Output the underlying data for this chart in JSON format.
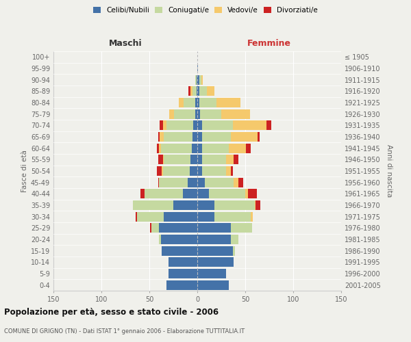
{
  "age_groups": [
    "0-4",
    "5-9",
    "10-14",
    "15-19",
    "20-24",
    "25-29",
    "30-34",
    "35-39",
    "40-44",
    "45-49",
    "50-54",
    "55-59",
    "60-64",
    "65-69",
    "70-74",
    "75-79",
    "80-84",
    "85-89",
    "90-94",
    "95-99",
    "100+"
  ],
  "birth_years": [
    "2001-2005",
    "1996-2000",
    "1991-1995",
    "1986-1990",
    "1981-1985",
    "1976-1980",
    "1971-1975",
    "1966-1970",
    "1961-1965",
    "1956-1960",
    "1951-1955",
    "1946-1950",
    "1941-1945",
    "1936-1940",
    "1931-1935",
    "1926-1930",
    "1921-1925",
    "1916-1920",
    "1911-1915",
    "1906-1910",
    "≤ 1905"
  ],
  "males": {
    "celibi": [
      32,
      30,
      30,
      37,
      38,
      40,
      35,
      25,
      15,
      10,
      8,
      7,
      6,
      5,
      4,
      2,
      2,
      1,
      1,
      0,
      0
    ],
    "coniugati": [
      0,
      0,
      0,
      0,
      2,
      8,
      28,
      42,
      40,
      30,
      28,
      28,
      32,
      30,
      28,
      22,
      12,
      4,
      1,
      0,
      0
    ],
    "vedovi": [
      0,
      0,
      0,
      0,
      0,
      0,
      0,
      0,
      0,
      0,
      1,
      1,
      2,
      4,
      4,
      5,
      5,
      2,
      0,
      0,
      0
    ],
    "divorziati": [
      0,
      0,
      0,
      0,
      0,
      1,
      1,
      0,
      4,
      1,
      5,
      5,
      2,
      2,
      3,
      0,
      0,
      2,
      0,
      0,
      0
    ]
  },
  "females": {
    "nubili": [
      33,
      30,
      38,
      37,
      35,
      35,
      18,
      18,
      12,
      8,
      5,
      5,
      5,
      5,
      5,
      3,
      2,
      2,
      2,
      1,
      0
    ],
    "coniugate": [
      0,
      0,
      0,
      2,
      8,
      22,
      38,
      42,
      38,
      30,
      25,
      25,
      28,
      30,
      32,
      22,
      18,
      8,
      2,
      0,
      0
    ],
    "vedove": [
      0,
      0,
      0,
      0,
      0,
      0,
      2,
      1,
      3,
      5,
      5,
      8,
      18,
      28,
      35,
      30,
      25,
      8,
      2,
      0,
      0
    ],
    "divorziate": [
      0,
      0,
      0,
      0,
      0,
      0,
      0,
      5,
      9,
      5,
      2,
      5,
      5,
      2,
      5,
      0,
      0,
      0,
      0,
      0,
      0
    ]
  },
  "colors": {
    "celibi": "#4472a8",
    "coniugati": "#c5d9a0",
    "vedovi": "#f5c96c",
    "divorziati": "#cc2222"
  },
  "title": "Popolazione per età, sesso e stato civile - 2006",
  "subtitle": "COMUNE DI GRIGNO (TN) - Dati ISTAT 1° gennaio 2006 - Elaborazione TUTTITALIA.IT",
  "ylabel_left": "Fasce di età",
  "ylabel_right": "Anni di nascita",
  "label_maschi": "Maschi",
  "label_femmine": "Femmine",
  "xlim": 150,
  "bg_color": "#f0f0eb"
}
